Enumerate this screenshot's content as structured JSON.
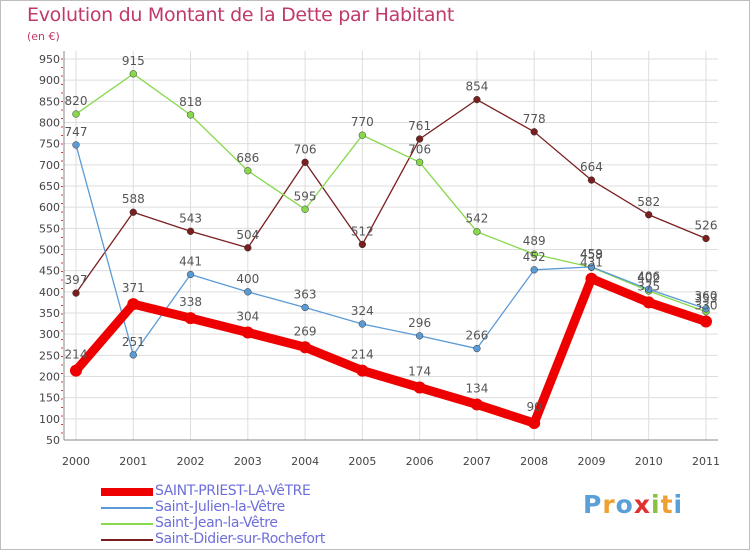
{
  "header": {
    "title": "Evolution du Montant de la Dette par Habitant",
    "subtitle": "(en €)"
  },
  "logo": {
    "text": "Proxiti",
    "colors": [
      "#5aa0d8",
      "#f0a030",
      "#5aa0d8",
      "#e03030",
      "#88c040",
      "#f0a030",
      "#5aa0d8"
    ]
  },
  "chart_data": {
    "type": "line",
    "categories": [
      "2000",
      "2001",
      "2002",
      "2003",
      "2004",
      "2005",
      "2006",
      "2007",
      "2008",
      "2009",
      "2010",
      "2011"
    ],
    "ylim": [
      50,
      950
    ],
    "yticks": [
      50,
      100,
      150,
      200,
      250,
      300,
      350,
      400,
      450,
      500,
      550,
      600,
      650,
      700,
      750,
      800,
      850,
      900,
      950
    ],
    "grid": true,
    "legend_position": "bottom-left",
    "series": [
      {
        "name": "Saint-Didier-sur-Rochefort",
        "color": "#7a1f1f",
        "values": [
          397,
          588,
          543,
          504,
          706,
          512,
          761,
          854,
          778,
          664,
          582,
          526
        ]
      },
      {
        "name": "Saint-Jean-la-Vêtre",
        "color": "#88d84c",
        "values": [
          820,
          915,
          818,
          686,
          595,
          770,
          706,
          542,
          489,
          458,
          402,
          353
        ]
      },
      {
        "name": "Saint-Julien-la-Vêtre",
        "color": "#5b9bd5",
        "values": [
          747,
          251,
          441,
          400,
          363,
          324,
          296,
          266,
          452,
          459,
          406,
          360
        ]
      },
      {
        "name": "SAINT-PRIEST-LA-VêTRE",
        "color": "#ee0000",
        "values": [
          214,
          371,
          338,
          304,
          269,
          214,
          174,
          134,
          90,
          431,
          375,
          330
        ]
      }
    ]
  }
}
